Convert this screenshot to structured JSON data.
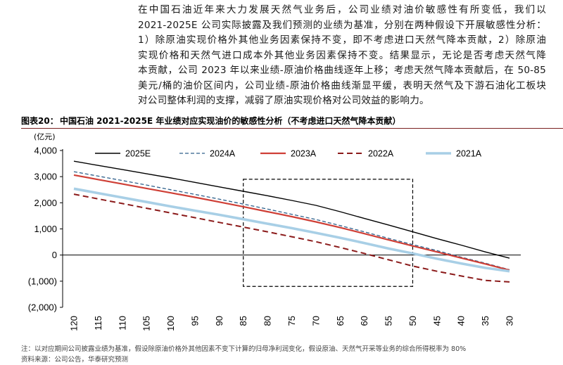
{
  "paragraph": [
    "在中国石油近年来大力发展天然气业务后，公司业绩对油价敏感性有所变低，我们以",
    "2021-2025E 公司实际披露及我们预测的业绩为基准，分别在两种假设下开展敏感性分析：",
    "1）除原油实现价格外其他业务因素保持不变，即不考虑进口天然气降本贡献，2）除原油",
    "实现价格和天然气进口成本外其他业务因素保持不变。结果显示，无论是否考虑天然气降",
    "本贡献，公司 2023 年以来业绩-原油价格曲线逐年上移；考虑天然气降本贡献后，在 50-85",
    "美元/桶的油价区间内，公司业绩-原油价格曲线渐显平缓，表明天然气及下游石油化工板块",
    "对公司整体利润的支撑，减弱了原油实现价格对公司效益的影响力。"
  ],
  "figure": {
    "label": "图表20：",
    "title": "中国石油 2021-2025E 年业绩对应实现油价的敏感性分析（不考虑进口天然气降本贡献）"
  },
  "chart_data": {
    "type": "line",
    "yunit": "(亿元)",
    "x": [
      120,
      115,
      110,
      105,
      100,
      95,
      90,
      85,
      80,
      75,
      70,
      65,
      60,
      55,
      50,
      45,
      40,
      35,
      30
    ],
    "ytick_labels": [
      "4,000",
      "3,000",
      "2,000",
      "1,000",
      "0",
      "(1,000)",
      "(2,000)"
    ],
    "ytick_values": [
      4000,
      3000,
      2000,
      1000,
      0,
      -1000,
      -2000
    ],
    "ylim": [
      -2000,
      4000
    ],
    "xlim": [
      120,
      30
    ],
    "highlight_range": {
      "x": [
        85,
        50
      ],
      "y": [
        -1200,
        2900
      ]
    },
    "series": [
      {
        "name": "2025E",
        "color": "#000000",
        "style": "solid",
        "width": 1.4,
        "values": [
          3590,
          3430,
          3270,
          3110,
          2950,
          2780,
          2610,
          2440,
          2270,
          2090,
          1900,
          1660,
          1400,
          1150,
          890,
          630,
          380,
          120,
          -120
        ]
      },
      {
        "name": "2024A",
        "color": "#2e5f8a",
        "style": "dashed",
        "width": 1.3,
        "values": [
          3190,
          3020,
          2850,
          2680,
          2500,
          2320,
          2140,
          1950,
          1760,
          1560,
          1360,
          1130,
          890,
          640,
          400,
          170,
          -80,
          -310,
          -560
        ]
      },
      {
        "name": "2023A",
        "color": "#cf3f36",
        "style": "solid",
        "width": 2.2,
        "values": [
          3060,
          2890,
          2720,
          2550,
          2380,
          2210,
          2030,
          1850,
          1660,
          1470,
          1270,
          1050,
          820,
          580,
          350,
          120,
          -110,
          -340,
          -580
        ]
      },
      {
        "name": "2022A",
        "color": "#8b1a1a",
        "style": "dashed",
        "width": 2.0,
        "values": [
          2330,
          2150,
          1970,
          1790,
          1610,
          1430,
          1250,
          1070,
          890,
          700,
          510,
          290,
          60,
          -180,
          -420,
          -620,
          -800,
          -970,
          -1030
        ]
      },
      {
        "name": "2021A",
        "color": "#a8cfe6",
        "style": "solid",
        "width": 3.6,
        "values": [
          2540,
          2370,
          2200,
          2030,
          1860,
          1700,
          1540,
          1370,
          1200,
          1030,
          850,
          660,
          460,
          250,
          60,
          -140,
          -320,
          -490,
          -620
        ]
      }
    ]
  },
  "footnote": {
    "note": "注：以对应期间公司披露业绩为基准，假设除原油价格外其他因素不变下计算的归母净利润变化，假设原油、天然气开采等业务的综合所得税率为 80%",
    "source": "资料来源：公司公告，华泰研究预测"
  }
}
